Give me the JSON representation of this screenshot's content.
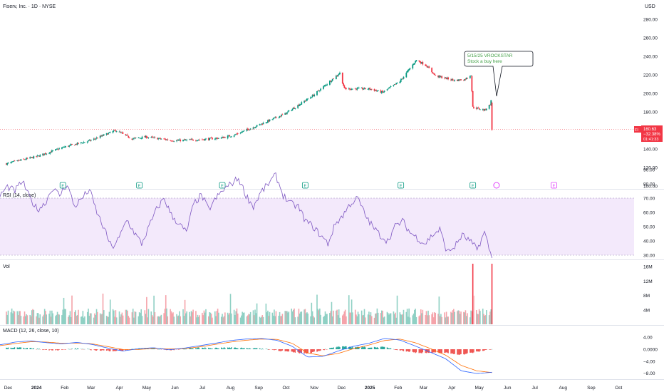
{
  "header": {
    "title": "Fiserv, Inc. · 1D · NYSE",
    "currency": "USD"
  },
  "annotation": {
    "line1": "5/15/25 VROCKSTAR",
    "line2": "Stock a buy here"
  },
  "price_tag": {
    "ticker": "FI",
    "price": "160.63",
    "change": "−32.38%",
    "time": "01:41:33"
  },
  "panes": {
    "rsi_title": "RSI (14, close)",
    "vol_title": "Vol",
    "macd_title": "MACD (12, 26, close, 10)"
  },
  "earnings_marker_label": "E",
  "colors": {
    "up": "#089981",
    "down": "#f23645",
    "rsi_line": "#7e57c2",
    "rsi_band": "#f3e9fb",
    "macd_line": "#2962ff",
    "signal_line": "#ff6d00",
    "annotation_text": "#43a047"
  },
  "chart_data": [
    {
      "type": "line",
      "title": "Fiserv, Inc. · 1D · NYSE",
      "ylabel": "USD",
      "ylim": [
        100,
        280
      ],
      "price_ticks": [
        "280.00",
        "260.00",
        "240.00",
        "220.00",
        "200.00",
        "180.00",
        "160.00",
        "140.00",
        "120.00",
        "100.00"
      ],
      "x_tick_labels": [
        "Dec",
        "2024",
        "Feb",
        "Mar",
        "Apr",
        "May",
        "Jun",
        "Jul",
        "Aug",
        "Sep",
        "Oct",
        "Nov",
        "Dec",
        "2025",
        "Feb",
        "Mar",
        "Apr",
        "May",
        "Jun",
        "Jul",
        "Aug",
        "Sep",
        "Oct"
      ],
      "series": [
        {
          "name": "FI",
          "x": [
            "2023-11-29",
            "2023-12-15",
            "2024-01-02",
            "2024-01-31",
            "2024-02-29",
            "2024-03-28",
            "2024-04-15",
            "2024-04-30",
            "2024-05-31",
            "2024-06-28",
            "2024-07-22",
            "2024-08-05",
            "2024-08-30",
            "2024-09-30",
            "2024-10-31",
            "2024-11-29",
            "2024-12-04",
            "2024-12-31",
            "2025-01-15",
            "2025-02-03",
            "2025-02-21",
            "2025-03-04",
            "2025-03-14",
            "2025-04-04",
            "2025-04-15",
            "2025-04-22",
            "2025-04-24",
            "2025-05-07",
            "2025-05-13",
            "2025-05-14",
            "2025-05-15"
          ],
          "close": [
            124,
            128,
            132,
            142,
            149,
            160,
            151,
            153,
            149,
            150,
            152,
            155,
            165,
            178,
            198,
            222,
            205,
            205,
            201,
            213,
            236,
            230,
            219,
            214,
            215,
            220,
            185,
            182,
            188,
            192,
            160.63
          ]
        }
      ],
      "earnings_dates": [
        "2024-01-30",
        "2024-04-23",
        "2024-07-23",
        "2024-10-22",
        "2025-02-04",
        "2025-04-24",
        "2025-07-22"
      ]
    },
    {
      "type": "line",
      "title": "RSI (14, close)",
      "ylim": [
        30,
        90
      ],
      "ticks": [
        "90.00",
        "80.00",
        "70.00",
        "60.00",
        "50.00",
        "40.00",
        "30.00"
      ],
      "band": [
        30,
        70
      ],
      "series": [
        {
          "name": "RSI",
          "values": [
            72,
            78,
            75,
            82,
            70,
            62,
            66,
            77,
            72,
            80,
            64,
            70,
            76,
            60,
            48,
            35,
            42,
            55,
            46,
            38,
            50,
            62,
            70,
            58,
            52,
            46,
            66,
            72,
            62,
            70,
            76,
            80,
            84,
            72,
            64,
            74,
            80,
            86,
            72,
            66,
            64,
            54,
            50,
            44,
            38,
            52,
            58,
            66,
            70,
            58,
            50,
            44,
            40,
            50,
            54,
            46,
            42,
            38,
            44,
            48,
            32,
            36,
            44,
            40,
            34,
            46,
            28
          ]
        }
      ]
    },
    {
      "type": "bar",
      "title": "Vol",
      "ylim": [
        0,
        17000000
      ],
      "ticks": [
        "16M",
        "12M",
        "8M",
        "4M"
      ],
      "peak_values": [
        16800000,
        16800000
      ]
    },
    {
      "type": "line",
      "title": "MACD (12, 26, close, 10)",
      "ylim": [
        -8.5,
        4.5
      ],
      "ticks": [
        "4.00",
        "0.0000",
        "−4.00",
        "−8.00"
      ],
      "series": [
        {
          "name": "MACD",
          "values": [
            1.5,
            2.4,
            2.8,
            2.2,
            1.8,
            2.3,
            1.6,
            0.4,
            -0.6,
            0.2,
            0.5,
            -0.2,
            0.4,
            1.2,
            2.0,
            2.9,
            3.4,
            3.6,
            3.0,
            1.0,
            -2.6,
            -2.4,
            -0.6,
            1.0,
            2.0,
            3.6,
            3.1,
            1.1,
            -1.0,
            -3.2,
            -7.2,
            -8.1,
            -7.7
          ]
        },
        {
          "name": "Signal",
          "values": [
            1.2,
            1.9,
            2.5,
            2.4,
            2.0,
            2.1,
            1.8,
            0.9,
            -0.1,
            -0.1,
            0.3,
            0.1,
            0.2,
            0.8,
            1.6,
            2.4,
            3.0,
            3.4,
            3.3,
            2.0,
            -1.2,
            -2.2,
            -1.4,
            0.2,
            1.4,
            2.9,
            3.4,
            2.2,
            0.2,
            -2.0,
            -5.4,
            -7.2,
            -7.8
          ]
        }
      ]
    }
  ]
}
